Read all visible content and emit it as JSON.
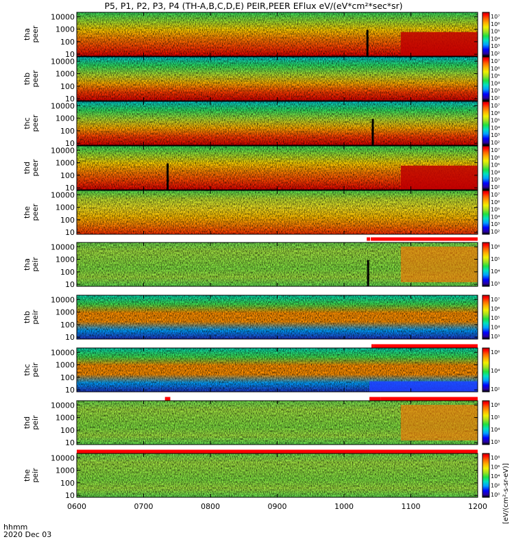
{
  "title": "P5, P1, P2, P3, P4 (TH-A,B,C,D,E) PEIR,PEER EFlux eV/(eV*cm²*sec*sr)",
  "time_label": "hhmm",
  "date_label": "2020 Dec 03",
  "colorbar_unit_label": "[eV/(cm²-s-sr-eV)]",
  "colors": {
    "spectrum": [
      "#000000",
      "#2a00a0",
      "#0000ff",
      "#00a0ff",
      "#00e0c0",
      "#20e040",
      "#a0e020",
      "#f0f000",
      "#ffb000",
      "#ff6000",
      "#ff0000",
      "#b00000"
    ],
    "bar": "#ff0000"
  },
  "chart_data": [
    {
      "type": "heatmap",
      "probe": "tha",
      "species": "peer",
      "ylabel": "tha\npeer",
      "yticks": [
        "10",
        "100",
        "1000",
        "10000"
      ],
      "colorbar_ticks": [
        "10²",
        "10³",
        "10⁴",
        "10⁵",
        "10⁶",
        "10⁷"
      ],
      "colorbar_range": [
        2,
        7
      ]
    },
    {
      "type": "heatmap",
      "probe": "thb",
      "species": "peer",
      "ylabel": "thb\npeer",
      "yticks": [
        "10",
        "100",
        "1000",
        "10000"
      ],
      "colorbar_ticks": [
        "10²",
        "10³",
        "10⁴",
        "10⁵",
        "10⁶",
        "10⁷"
      ],
      "colorbar_range": [
        2,
        7
      ]
    },
    {
      "type": "heatmap",
      "probe": "thc",
      "species": "peer",
      "ylabel": "thc\npeer",
      "yticks": [
        "10",
        "100",
        "1000",
        "10000"
      ],
      "colorbar_ticks": [
        "10²",
        "10³",
        "10⁴",
        "10⁵",
        "10⁶",
        "10⁷"
      ],
      "colorbar_range": [
        2,
        7
      ]
    },
    {
      "type": "heatmap",
      "probe": "thd",
      "species": "peer",
      "ylabel": "thd\npeer",
      "yticks": [
        "10",
        "100",
        "1000",
        "10000"
      ],
      "colorbar_ticks": [
        "10²",
        "10³",
        "10⁴",
        "10⁵",
        "10⁶",
        "10⁷"
      ],
      "colorbar_range": [
        2,
        7
      ]
    },
    {
      "type": "heatmap",
      "probe": "the",
      "species": "peer",
      "ylabel": "the\npeer",
      "yticks": [
        "10",
        "100",
        "1000",
        "10000"
      ],
      "colorbar_ticks": [
        "10²",
        "10³",
        "10⁴",
        "10⁵",
        "10⁶",
        "10⁷"
      ],
      "colorbar_range": [
        2,
        7
      ]
    },
    {
      "type": "heatmap",
      "probe": "tha",
      "species": "peir",
      "ylabel": "tha\npeir",
      "yticks": [
        "10",
        "100",
        "1000",
        "10000"
      ],
      "colorbar_ticks": [
        "10³",
        "10⁴",
        "10⁵",
        "10⁶"
      ],
      "colorbar_range": [
        3,
        6
      ]
    },
    {
      "type": "heatmap",
      "probe": "thb",
      "species": "peir",
      "ylabel": "thb\npeir",
      "yticks": [
        "10",
        "100",
        "1000",
        "10000"
      ],
      "colorbar_ticks": [
        "10³",
        "10⁴",
        "10⁵",
        "10⁶",
        "10⁷"
      ],
      "colorbar_range": [
        3,
        7
      ]
    },
    {
      "type": "heatmap",
      "probe": "thc",
      "species": "peir",
      "ylabel": "thc\npeir",
      "yticks": [
        "10",
        "100",
        "1000",
        "10000"
      ],
      "colorbar_ticks": [
        "10²",
        "10⁴",
        "10⁶"
      ],
      "colorbar_range": [
        2,
        6
      ]
    },
    {
      "type": "heatmap",
      "probe": "thd",
      "species": "peir",
      "ylabel": "thd\npeir",
      "yticks": [
        "10",
        "100",
        "1000",
        "10000"
      ],
      "colorbar_ticks": [
        "10³",
        "10⁴",
        "10⁵",
        "10⁶"
      ],
      "colorbar_range": [
        3,
        6
      ]
    },
    {
      "type": "heatmap",
      "probe": "the",
      "species": "peir",
      "ylabel": "the\npeir",
      "yticks": [
        "10",
        "100",
        "1000",
        "10000"
      ],
      "colorbar_ticks": [
        "10⁰",
        "10²",
        "10⁴",
        "10⁶",
        "10⁸"
      ],
      "colorbar_range": [
        0,
        8
      ]
    }
  ],
  "x_axis": {
    "range_hhmm": [
      "0600",
      "1200"
    ],
    "ticks": [
      "0600",
      "0700",
      "0800",
      "0900",
      "1000",
      "1100",
      "1200"
    ]
  }
}
